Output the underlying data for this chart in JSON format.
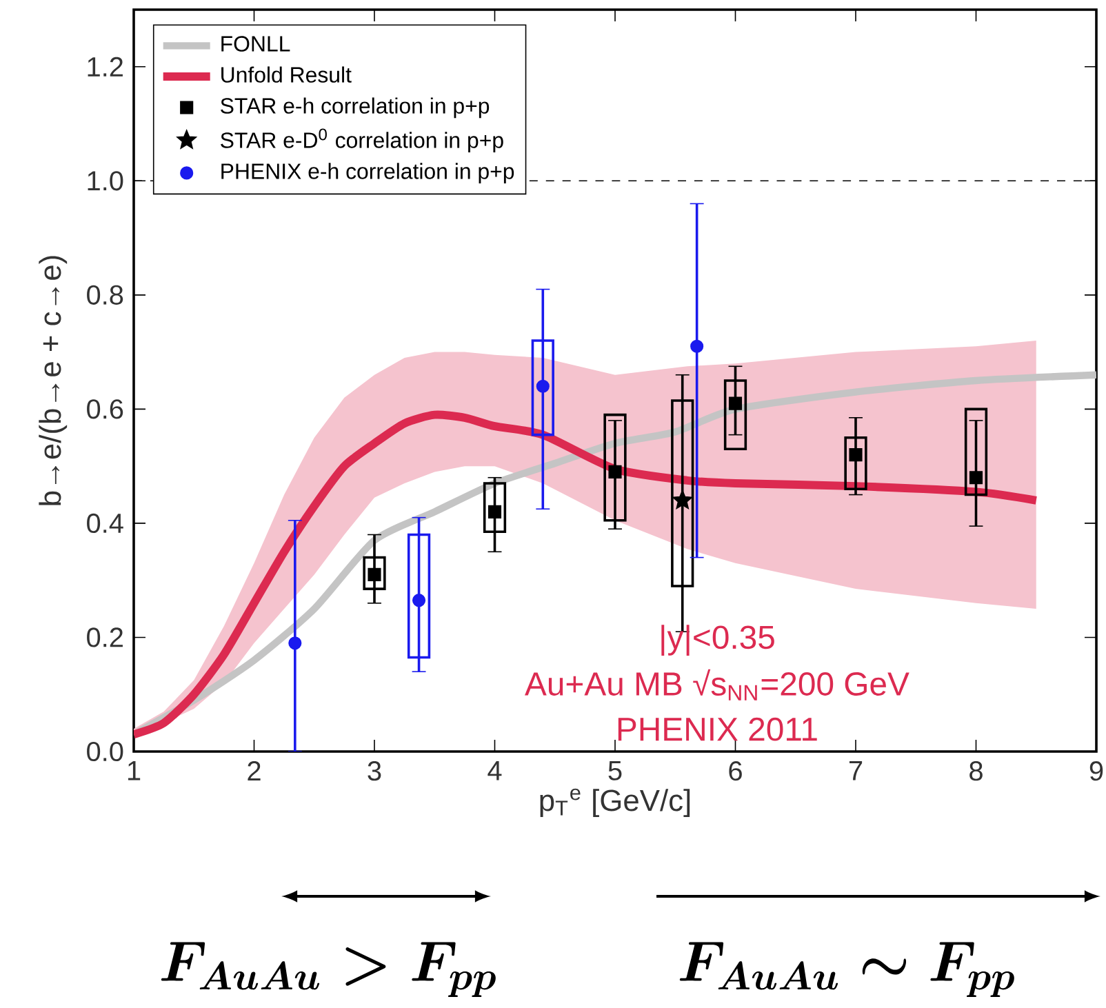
{
  "chart_data": {
    "type": "scatter",
    "xlabel": "p$_{T}$$^{e}$  [GeV/c]",
    "ylabel": "b→e/(b→e + c→e)",
    "xlim": [
      1,
      9
    ],
    "ylim": [
      0,
      1.3
    ],
    "xticks": [
      1,
      2,
      3,
      4,
      5,
      6,
      7,
      8,
      9
    ],
    "yticks": [
      {
        "value": 0.0,
        "label": "0.0"
      },
      {
        "value": 0.2,
        "label": "0.2"
      },
      {
        "value": 0.4,
        "label": "0.4"
      },
      {
        "value": 0.6,
        "label": "0.6"
      },
      {
        "value": 0.8,
        "label": "0.8"
      },
      {
        "value": 1.0,
        "label": "1.0"
      },
      {
        "value": 1.2,
        "label": "1.2"
      }
    ],
    "legend": "top left",
    "ref_lines": [
      {
        "axis": "y",
        "value": 1.0,
        "color": "#000000",
        "line_style": "dashed"
      }
    ],
    "annotations": [
      "|y|<0.35",
      "Au+Au MB √s$_{NN}$=200 GeV",
      "PHENIX 2011",
      "F_{AuAu} > F_{pp}",
      "F_{AuAu}\\sim F_{pp}"
    ],
    "series": [
      {
        "name": "FONLL",
        "type": "line",
        "color": "#c4c4c4",
        "x": [
          1,
          1.5,
          2,
          2.5,
          3,
          3.5,
          4,
          4.5,
          5,
          5.5,
          6,
          7,
          8,
          9
        ],
        "values": [
          0.03,
          0.09,
          0.16,
          0.25,
          0.37,
          0.42,
          0.47,
          0.505,
          0.54,
          0.56,
          0.6,
          0.63,
          0.65,
          0.66
        ]
      },
      {
        "name": "Unfold Result",
        "type": "line",
        "color": "#dc2a50",
        "x": [
          1,
          1.25,
          1.5,
          1.75,
          2,
          2.25,
          2.5,
          2.75,
          3,
          3.25,
          3.5,
          3.75,
          4,
          4.4,
          5,
          5.6,
          6,
          7,
          8,
          8.5
        ],
        "values": [
          0.03,
          0.05,
          0.1,
          0.17,
          0.26,
          0.35,
          0.43,
          0.5,
          0.54,
          0.575,
          0.59,
          0.585,
          0.57,
          0.555,
          0.495,
          0.475,
          0.47,
          0.465,
          0.455,
          0.44
        ],
        "lower": [
          0.03,
          0.05,
          0.075,
          0.12,
          0.19,
          0.25,
          0.31,
          0.38,
          0.445,
          0.47,
          0.49,
          0.5,
          0.5,
          0.47,
          0.405,
          0.355,
          0.33,
          0.285,
          0.26,
          0.25
        ],
        "upper": [
          0.04,
          0.07,
          0.125,
          0.22,
          0.33,
          0.45,
          0.55,
          0.62,
          0.66,
          0.69,
          0.7,
          0.7,
          0.695,
          0.69,
          0.66,
          0.675,
          0.68,
          0.7,
          0.71,
          0.72
        ]
      },
      {
        "name": "STAR e-h correlation in p+p",
        "marker": "square",
        "color": "#000000",
        "x": [
          3,
          4,
          5,
          6,
          7,
          8
        ],
        "values": [
          0.31,
          0.42,
          0.49,
          0.61,
          0.52,
          0.48
        ],
        "errors": [
          [
            0.26,
            0.38
          ],
          [
            0.35,
            0.48
          ],
          [
            0.39,
            0.58
          ],
          [
            0.555,
            0.675
          ],
          [
            0.45,
            0.585
          ],
          [
            0.395,
            0.58
          ]
        ]
      },
      {
        "name": "STAR e-D$^{0}$  correlation in p+p",
        "marker": "star",
        "color": "#000000",
        "x": [
          5.56
        ],
        "values": [
          0.44
        ],
        "errors": [
          [
            0.21,
            0.66
          ]
        ]
      },
      {
        "name": "PHENIX e-h correlation in p+p",
        "marker": "circle",
        "color": "#1a1aee",
        "x": [
          2.34,
          3.37,
          4.4,
          5.68
        ],
        "values": [
          0.19,
          0.265,
          0.64,
          0.71
        ],
        "errors": [
          [
            0.0,
            0.405
          ],
          [
            0.14,
            0.41
          ],
          [
            0.425,
            0.81
          ],
          [
            0.34,
            0.96
          ]
        ]
      },
      {
        "type": "bar",
        "color": "#000000",
        "x": [
          3,
          4,
          5,
          6,
          7,
          8
        ],
        "base": [
          0.285,
          0.385,
          0.405,
          0.53,
          0.46,
          0.45
        ],
        "values": [
          0.055,
          0.085,
          0.185,
          0.12,
          0.09,
          0.15
        ]
      },
      {
        "type": "bar",
        "color": "#000000",
        "x": [
          5.56
        ],
        "base": [
          0.29
        ],
        "values": [
          0.325
        ]
      },
      {
        "type": "bar",
        "color": "#1a1aee",
        "x": [
          3.37,
          4.4
        ],
        "base": [
          0.165,
          0.555
        ],
        "values": [
          0.215,
          0.165
        ]
      }
    ]
  }
}
